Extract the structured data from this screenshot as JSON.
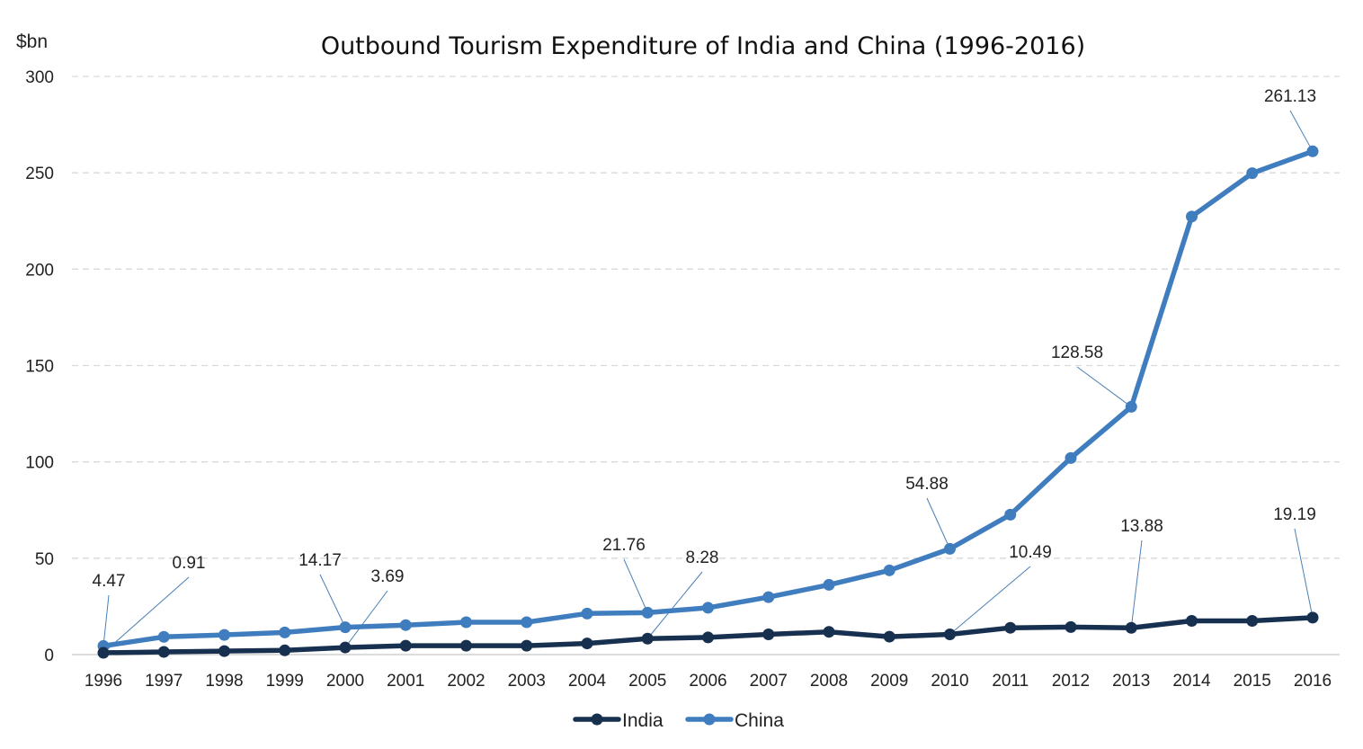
{
  "chart_data": {
    "type": "line",
    "title": "Outbound Tourism Expenditure of India and China (1996-2016)",
    "y_unit": "$bn",
    "ylim": [
      0,
      300
    ],
    "yticks": [
      0,
      50,
      100,
      150,
      200,
      250,
      300
    ],
    "grid": true,
    "legend_position": "bottom",
    "x": [
      "1996",
      "1997",
      "1998",
      "1999",
      "2000",
      "2001",
      "2002",
      "2003",
      "2004",
      "2005",
      "2006",
      "2007",
      "2008",
      "2009",
      "2010",
      "2011",
      "2012",
      "2013",
      "2014",
      "2015",
      "2016"
    ],
    "series": [
      {
        "name": "India",
        "color": "#17304f",
        "values": [
          0.91,
          1.4,
          1.8,
          2.2,
          3.69,
          4.6,
          4.6,
          4.6,
          5.8,
          8.28,
          8.9,
          10.5,
          11.8,
          9.3,
          10.49,
          13.9,
          14.3,
          13.88,
          17.5,
          17.5,
          19.19
        ],
        "data_labels": [
          {
            "index": 0,
            "text": "0.91"
          },
          {
            "index": 4,
            "text": "3.69"
          },
          {
            "index": 9,
            "text": "8.28"
          },
          {
            "index": 14,
            "text": "10.49"
          },
          {
            "index": 17,
            "text": "13.88"
          },
          {
            "index": 20,
            "text": "19.19"
          }
        ]
      },
      {
        "name": "China",
        "color": "#3f7dbf",
        "values": [
          4.47,
          9.2,
          10.2,
          11.5,
          14.17,
          15.3,
          16.8,
          16.8,
          21.3,
          21.76,
          24.3,
          29.8,
          36.2,
          43.7,
          54.88,
          72.6,
          102.0,
          128.58,
          227.3,
          249.8,
          261.13
        ],
        "data_labels": [
          {
            "index": 0,
            "text": "4.47"
          },
          {
            "index": 4,
            "text": "14.17"
          },
          {
            "index": 9,
            "text": "21.76"
          },
          {
            "index": 14,
            "text": "54.88"
          },
          {
            "index": 17,
            "text": "128.58"
          },
          {
            "index": 20,
            "text": "261.13"
          }
        ]
      }
    ]
  }
}
